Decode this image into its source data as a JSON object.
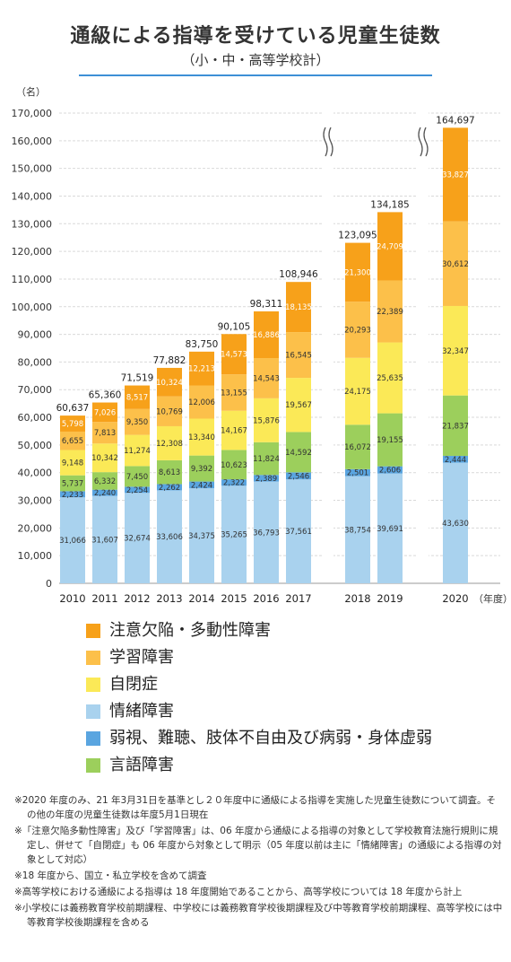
{
  "title": "通級による指導を受けている児童生徒数",
  "subtitle": "（小・中・高等学校計）",
  "chart_data": {
    "type": "bar",
    "stacked": true,
    "ylabel": "（名）",
    "xlabel": "（年度）",
    "ylim": [
      0,
      170000
    ],
    "yticks": [
      0,
      10000,
      20000,
      30000,
      40000,
      50000,
      60000,
      70000,
      80000,
      90000,
      100000,
      110000,
      120000,
      130000,
      140000,
      150000,
      160000,
      170000
    ],
    "ytick_labels": [
      "0",
      "10,000",
      "20,000",
      "30,000",
      "40,000",
      "50,000",
      "60,000",
      "70,000",
      "80,000",
      "90,000",
      "100,000",
      "110,000",
      "120,000",
      "130,000",
      "140,000",
      "150,000",
      "160,000",
      "170,000"
    ],
    "grid": true,
    "axis_breaks": [
      "2017-2018",
      "2019-2020"
    ],
    "categories": [
      "2010",
      "2011",
      "2012",
      "2013",
      "2014",
      "2015",
      "2016",
      "2017",
      "2018",
      "2019",
      "2020"
    ],
    "totals": [
      60637,
      65360,
      71519,
      77882,
      83750,
      90105,
      98311,
      108946,
      123095,
      134185,
      164697
    ],
    "total_labels": [
      "60,637",
      "65,360",
      "71,519",
      "77,882",
      "83,750",
      "90,105",
      "98,311",
      "108,946",
      "123,095",
      "134,185",
      "164,697"
    ],
    "series": [
      {
        "name": "情緒障害",
        "color": "#a9d2ee",
        "values": [
          31066,
          31607,
          32674,
          33606,
          34375,
          35265,
          36793,
          37561,
          38754,
          39691,
          43630
        ],
        "labels": [
          "31,066",
          "31,607",
          "32,674",
          "33,606",
          "34,375",
          "35,265",
          "36,793",
          "37,561",
          "38,754",
          "39,691",
          "43,630"
        ]
      },
      {
        "name": "弱視、難聴、肢体不自由及び病弱・身体虚弱",
        "color": "#5aa5e0",
        "values": [
          2233,
          2240,
          2254,
          2262,
          2424,
          2322,
          2389,
          2546,
          2501,
          2606,
          2444
        ],
        "labels": [
          "2,233",
          "2,240",
          "2,254",
          "2,262",
          "2,424",
          "2,322",
          "2,389",
          "2,546",
          "2,501",
          "2,606",
          "2,444"
        ]
      },
      {
        "name": "言語障害",
        "color": "#9ccf5c",
        "values": [
          5737,
          6332,
          7450,
          8613,
          9392,
          10623,
          11824,
          14592,
          16072,
          19155,
          21837
        ],
        "labels": [
          "5,737",
          "6,332",
          "7,450",
          "8,613",
          "9,392",
          "10,623",
          "11,824",
          "14,592",
          "16,072",
          "19,155",
          "21,837"
        ]
      },
      {
        "name": "自閉症",
        "color": "#fbe957",
        "values": [
          9148,
          10342,
          11274,
          12308,
          13340,
          14167,
          15876,
          19567,
          24175,
          25635,
          32347
        ],
        "labels": [
          "9,148",
          "10,342",
          "11,274",
          "12,308",
          "13,340",
          "14,167",
          "15,876",
          "19,567",
          "24,175",
          "25,635",
          "32,347"
        ]
      },
      {
        "name": "学習障害",
        "color": "#fcc04a",
        "values": [
          6655,
          7813,
          9350,
          10769,
          12006,
          13155,
          14543,
          16545,
          20293,
          22389,
          30612
        ],
        "labels": [
          "6,655",
          "7,813",
          "9,350",
          "10,769",
          "12,006",
          "13,155",
          "14,543",
          "16,545",
          "20,293",
          "22,389",
          "30,612"
        ]
      },
      {
        "name": "注意欠陥・多動性障害",
        "color": "#f7a11a",
        "values": [
          5798,
          7026,
          8517,
          10324,
          12213,
          14573,
          16886,
          18135,
          21300,
          24709,
          33827
        ],
        "labels": [
          "5,798",
          "7,026",
          "8,517",
          "10,324",
          "12,213",
          "14,573",
          "16,886",
          "18,135",
          "21,300",
          "24,709",
          "33,827"
        ]
      }
    ]
  },
  "legend": [
    {
      "label": "注意欠陥・多動性障害",
      "color": "#f7a11a"
    },
    {
      "label": "学習障害",
      "color": "#fcc04a"
    },
    {
      "label": "自閉症",
      "color": "#fbe957"
    },
    {
      "label": "情緒障害",
      "color": "#a9d2ee"
    },
    {
      "label": "弱視、難聴、肢体不自由及び病弱・身体虚弱",
      "color": "#5aa5e0"
    },
    {
      "label": "言語障害",
      "color": "#9ccf5c"
    }
  ],
  "notes": [
    "※2020 年度のみ、21 年3月31日を基準とし２０年度中に通級による指導を実施した児童生徒数について調査。その他の年度の児童生徒数は年度5月1日現在",
    "※「注意欠陥多動性障害」及び「学習障害」は、06 年度から通級による指導の対象として学校教育法施行規則に規定し、併せて「自閉症」も 06 年度から対象として明示（05 年度以前は主に「情緒障害」の通級による指導の対象として対応）",
    "※18 年度から、国立・私立学校を含めて調査",
    "※高等学校における通級による指導は 18 年度開始であることから、高等学校については 18 年度から計上",
    "※小学校には義務教育学校前期課程、中学校には義務教育学校後期課程及び中等教育学校前期課程、高等学校には中等教育学校後期課程を含める"
  ]
}
